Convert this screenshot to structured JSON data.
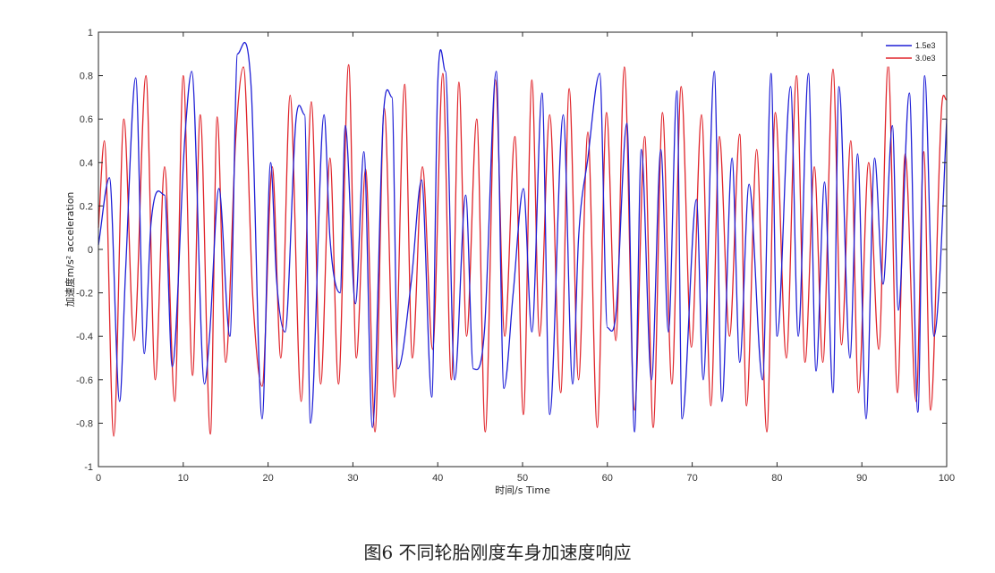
{
  "chart_data": {
    "type": "line",
    "title": "",
    "caption": "图6 不同轮胎刚度车身加速度响应",
    "xlabel": "时间/s Time",
    "ylabel": "加速度m/s² acceleration",
    "xlim": [
      0,
      100
    ],
    "ylim": [
      -1,
      1
    ],
    "xticks": [
      "0",
      "10",
      "20",
      "30",
      "40",
      "50",
      "60",
      "70",
      "80",
      "90",
      "100"
    ],
    "yticks": [
      "1",
      "0.8",
      "0.6",
      "0.4",
      "0.2",
      "0",
      "-0.2",
      "-0.4",
      "-0.6",
      "-0.8",
      "-1"
    ],
    "grid": false,
    "legend_position": "top-right",
    "series": [
      {
        "name": "1.5e3",
        "color": "#1f1fd6",
        "x": [
          0,
          1.3,
          2.5,
          3.2,
          4.4,
          5.4,
          6.2,
          7.8,
          8.7,
          10.2,
          11.0,
          12.5,
          13.1,
          14.2,
          15.5,
          16.4,
          18.0,
          19.3,
          20.3,
          21.0,
          22.0,
          23.3,
          24.3,
          25.0,
          26.6,
          27.3,
          28.5,
          29.1,
          30.3,
          31.3,
          32.3,
          33.6,
          34.6,
          35.3,
          36.9,
          38.1,
          39.3,
          40.0,
          40.9,
          42.0,
          43.3,
          44.2,
          45.5,
          46.9,
          47.8,
          48.9,
          50.1,
          51.1,
          52.3,
          53.2,
          54.8,
          55.9,
          56.6,
          57.7,
          59.1,
          60.0,
          61.0,
          62.3,
          63.2,
          64.0,
          65.2,
          66.3,
          67.2,
          68.2,
          68.8,
          70.5,
          71.3,
          72.6,
          73.5,
          74.7,
          75.6,
          76.7,
          78.3,
          79.3,
          80.0,
          81.6,
          82.5,
          83.7,
          84.6,
          85.6,
          86.6,
          87.3,
          88.6,
          89.5,
          90.5,
          91.5,
          92.5,
          93.6,
          94.3,
          95.6,
          96.6,
          97.4,
          98.5,
          99.1,
          100.0
        ],
        "y": [
          0.02,
          0.33,
          -0.7,
          -0.1,
          0.79,
          -0.48,
          0.12,
          0.25,
          -0.54,
          0.52,
          0.82,
          -0.62,
          -0.4,
          0.28,
          -0.4,
          0.9,
          0.75,
          -0.78,
          0.4,
          -0.14,
          -0.38,
          0.6,
          0.62,
          -0.8,
          0.62,
          0.05,
          -0.2,
          0.57,
          -0.25,
          0.45,
          -0.82,
          0.62,
          0.7,
          -0.55,
          -0.14,
          0.32,
          -0.68,
          0.76,
          0.82,
          -0.6,
          0.25,
          -0.55,
          -0.38,
          0.82,
          -0.64,
          -0.2,
          0.28,
          -0.38,
          0.72,
          -0.76,
          0.62,
          -0.62,
          0.05,
          0.42,
          0.81,
          -0.36,
          -0.3,
          0.58,
          -0.84,
          0.46,
          -0.6,
          0.46,
          -0.38,
          0.73,
          -0.78,
          0.23,
          -0.6,
          0.82,
          -0.7,
          0.42,
          -0.52,
          0.3,
          -0.6,
          0.81,
          -0.4,
          0.75,
          -0.4,
          0.81,
          -0.56,
          0.31,
          -0.66,
          0.75,
          -0.5,
          0.44,
          -0.78,
          0.42,
          -0.16,
          0.57,
          -0.28,
          0.72,
          -0.75,
          0.8,
          -0.4,
          -0.18,
          0.6
        ]
      },
      {
        "name": "3.0e3",
        "color": "#e0242a",
        "x": [
          0,
          0.7,
          1.8,
          3.0,
          4.2,
          5.6,
          6.7,
          7.8,
          9.0,
          10.0,
          11.1,
          12.0,
          13.2,
          14.0,
          15.0,
          16.2,
          17.1,
          18.2,
          19.3,
          20.5,
          21.5,
          22.6,
          23.9,
          25.1,
          26.2,
          27.3,
          28.3,
          29.5,
          30.4,
          31.5,
          32.6,
          33.7,
          34.9,
          36.1,
          37.0,
          38.2,
          39.4,
          40.6,
          41.6,
          42.5,
          43.4,
          44.6,
          45.6,
          46.8,
          47.9,
          49.1,
          50.1,
          51.1,
          52.0,
          53.2,
          54.5,
          55.5,
          56.6,
          57.7,
          58.8,
          59.9,
          61.0,
          62.0,
          63.2,
          64.4,
          65.4,
          66.5,
          67.6,
          68.7,
          69.9,
          71.1,
          72.2,
          73.2,
          74.4,
          75.6,
          76.4,
          77.6,
          78.8,
          79.8,
          81.1,
          82.3,
          83.3,
          84.4,
          85.4,
          86.6,
          87.6,
          88.7,
          89.6,
          90.8,
          92.0,
          93.1,
          94.2,
          95.1,
          96.4,
          97.3,
          98.1,
          99.4,
          100.0
        ],
        "y": [
          0.1,
          0.5,
          -0.86,
          0.6,
          -0.42,
          0.8,
          -0.6,
          0.38,
          -0.7,
          0.8,
          -0.58,
          0.62,
          -0.85,
          0.61,
          -0.52,
          0.52,
          0.84,
          -0.22,
          -0.63,
          0.38,
          -0.5,
          0.71,
          -0.7,
          0.68,
          -0.62,
          0.42,
          -0.62,
          0.85,
          -0.5,
          0.37,
          -0.84,
          0.65,
          -0.68,
          0.76,
          -0.5,
          0.38,
          -0.46,
          0.81,
          -0.6,
          0.77,
          -0.4,
          0.6,
          -0.84,
          0.78,
          -0.4,
          0.52,
          -0.76,
          0.78,
          -0.4,
          0.62,
          -0.66,
          0.74,
          -0.6,
          0.54,
          -0.82,
          0.63,
          -0.42,
          0.84,
          -0.74,
          0.52,
          -0.82,
          0.63,
          -0.62,
          0.75,
          -0.45,
          0.62,
          -0.72,
          0.52,
          -0.4,
          0.53,
          -0.72,
          0.46,
          -0.84,
          0.63,
          -0.5,
          0.8,
          -0.52,
          0.38,
          -0.52,
          0.83,
          -0.44,
          0.5,
          -0.66,
          0.4,
          -0.46,
          0.85,
          -0.66,
          0.44,
          -0.7,
          0.45,
          -0.74,
          0.65,
          0.69
        ]
      }
    ]
  }
}
